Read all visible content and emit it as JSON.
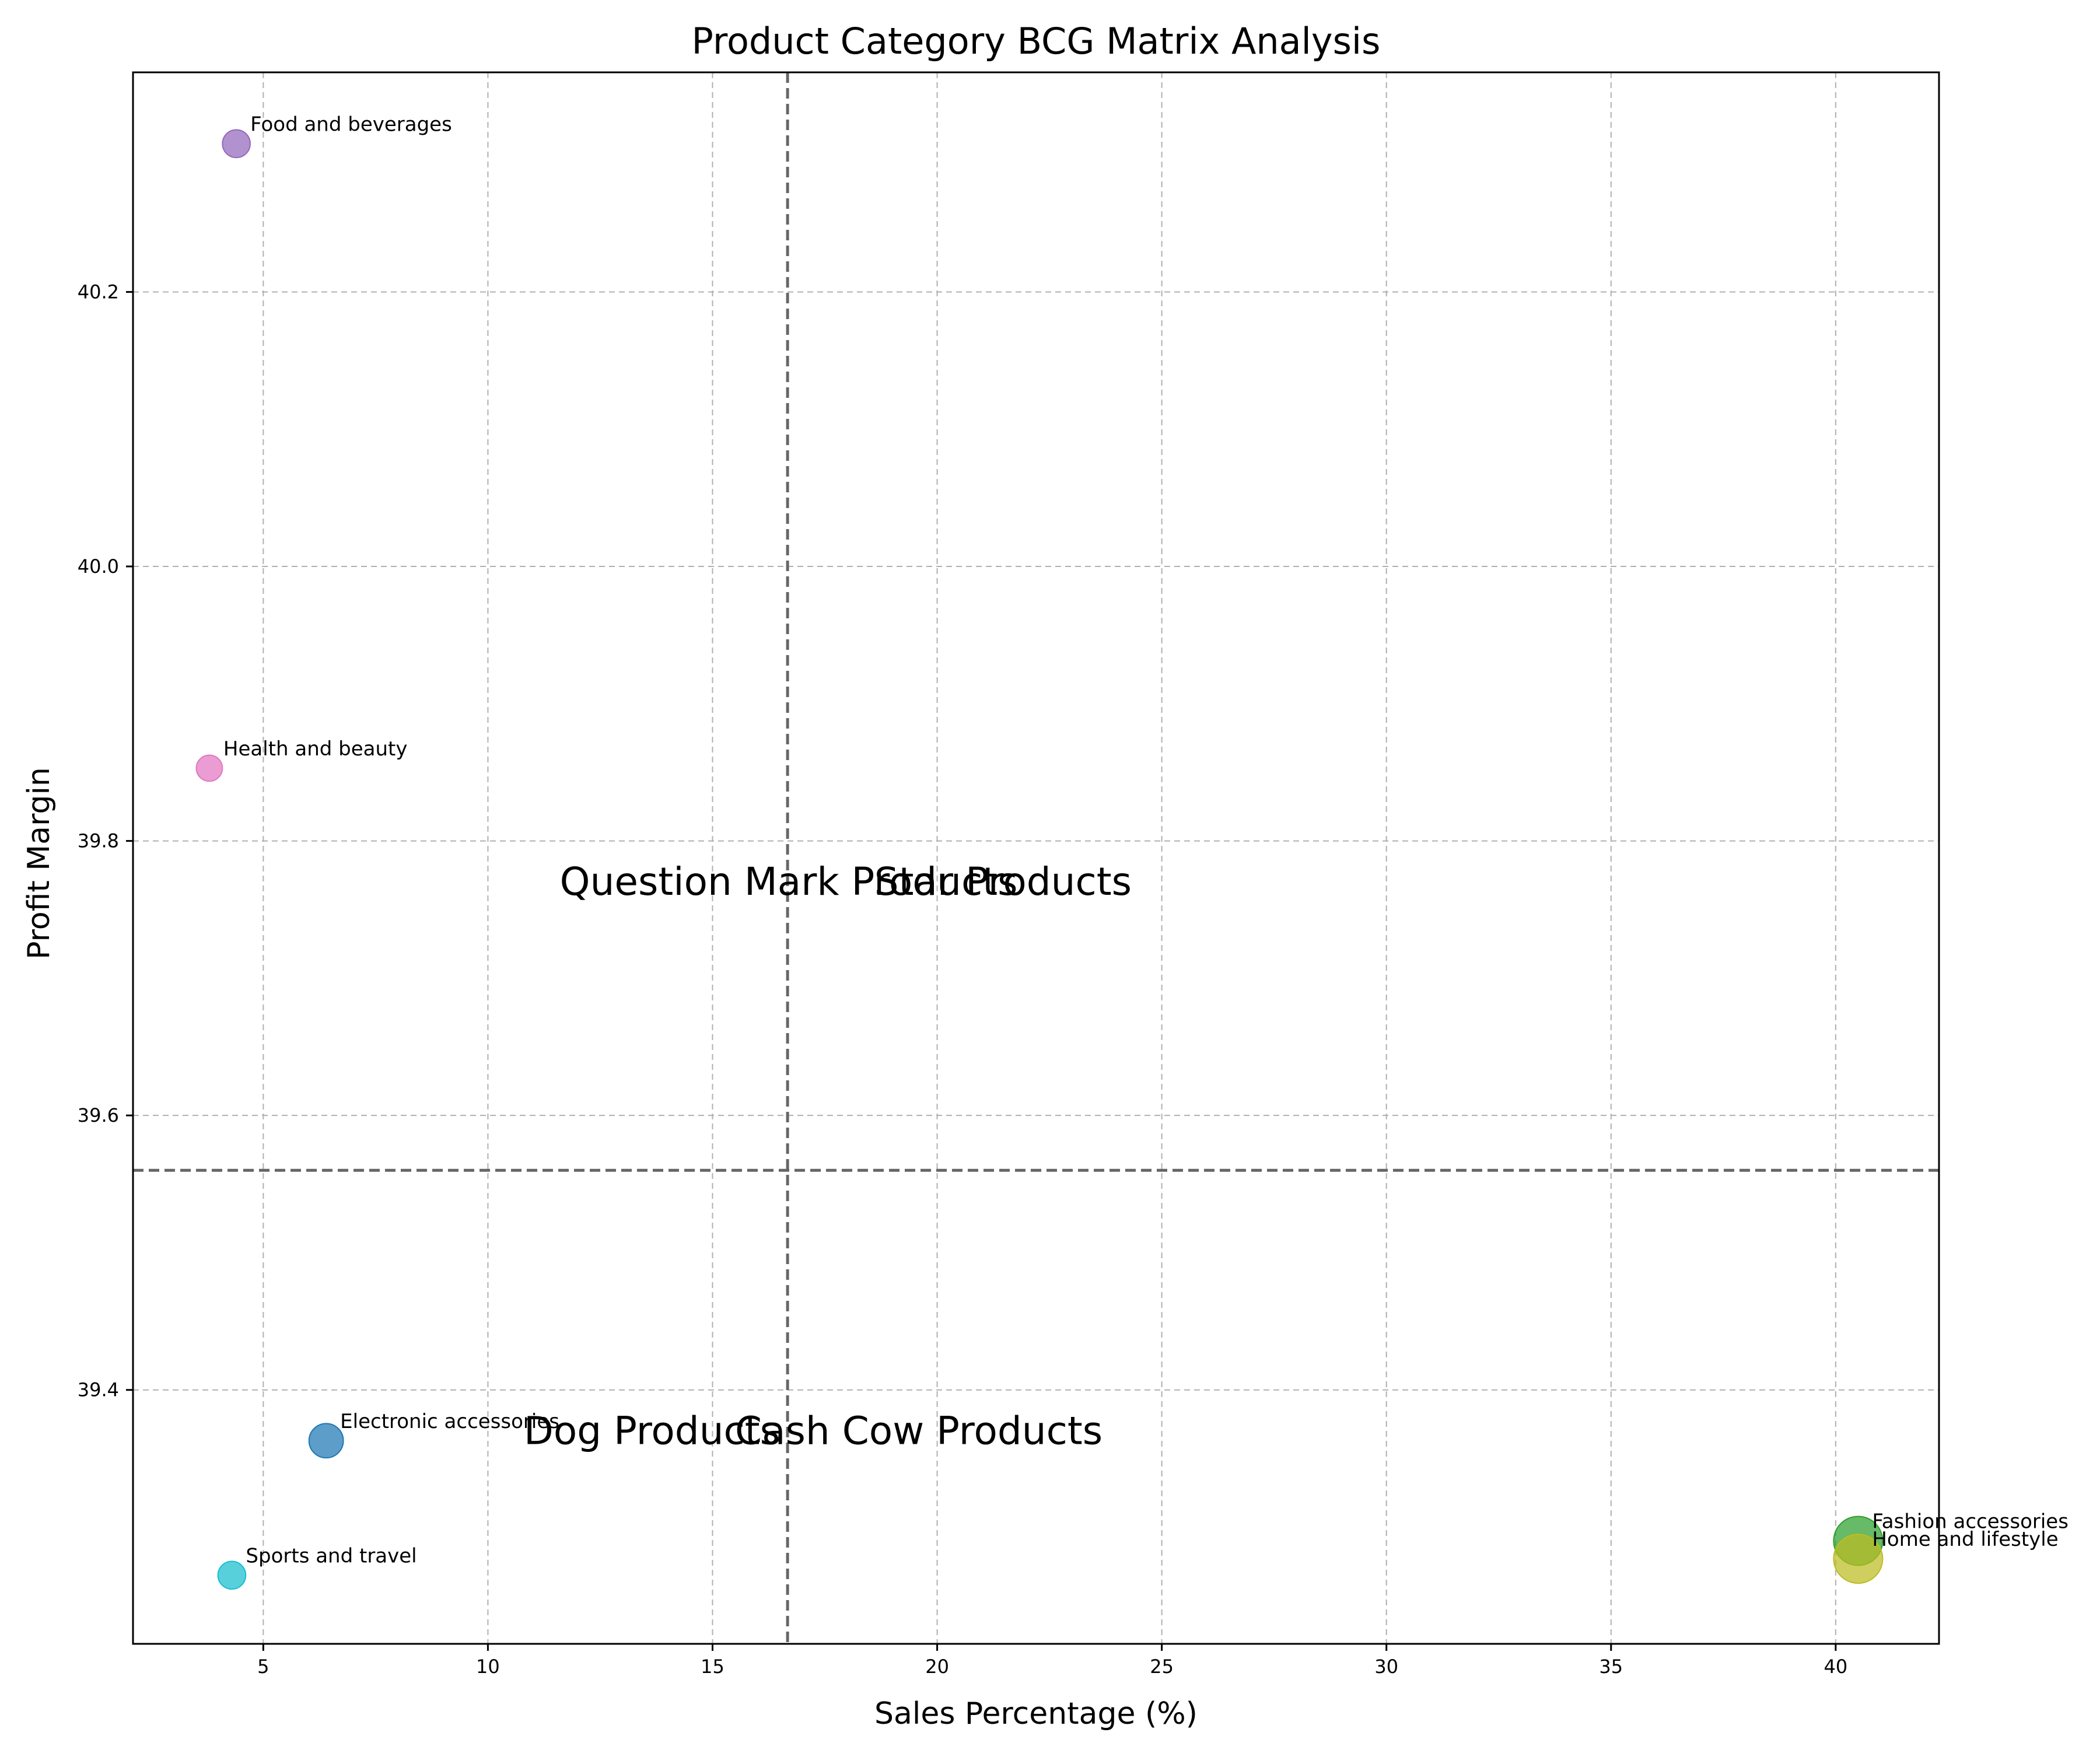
{
  "chart_data": {
    "type": "scatter",
    "title": "Product Category BCG Matrix Analysis",
    "xlabel": "Sales Percentage (%)",
    "ylabel": "Profit Margin",
    "xlim": [
      2.1,
      42.3
    ],
    "ylim": [
      39.215,
      40.36
    ],
    "xticks": [
      5,
      10,
      15,
      20,
      25,
      30,
      35,
      40
    ],
    "yticks": [
      39.4,
      39.6,
      39.8,
      40.0,
      40.2
    ],
    "xtick_labels": [
      "5",
      "10",
      "15",
      "20",
      "25",
      "30",
      "35",
      "40"
    ],
    "ytick_labels": [
      "39.4",
      "39.6",
      "39.8",
      "40.0",
      "40.2"
    ],
    "grid": true,
    "reference_lines": {
      "x": 16.67,
      "y": 39.56
    },
    "quadrant_labels": [
      {
        "text": "Question Mark Products",
        "x": 11.6,
        "y": 39.77
      },
      {
        "text": "Star Products",
        "x": 18.6,
        "y": 39.77
      },
      {
        "text": "Dog Products",
        "x": 10.8,
        "y": 39.37
      },
      {
        "text": "Cash Cow Products",
        "x": 15.5,
        "y": 39.37
      }
    ],
    "points": [
      {
        "label": "Food and beverages",
        "x": 4.4,
        "y": 40.308,
        "size": 0.35,
        "color": "#9467bd"
      },
      {
        "label": "Health and beauty",
        "x": 3.8,
        "y": 39.853,
        "size": 0.3,
        "color": "#e377c2"
      },
      {
        "label": "Electronic accessories",
        "x": 6.4,
        "y": 39.363,
        "size": 0.55,
        "color": "#1f77b4"
      },
      {
        "label": "Sports and travel",
        "x": 4.3,
        "y": 39.265,
        "size": 0.35,
        "color": "#17becf"
      },
      {
        "label": "Fashion accessories",
        "x": 40.5,
        "y": 39.29,
        "size": 1.0,
        "color": "#2ca02c"
      },
      {
        "label": "Home and lifestyle",
        "x": 40.5,
        "y": 39.277,
        "size": 1.0,
        "color": "#bcbd22"
      }
    ]
  }
}
